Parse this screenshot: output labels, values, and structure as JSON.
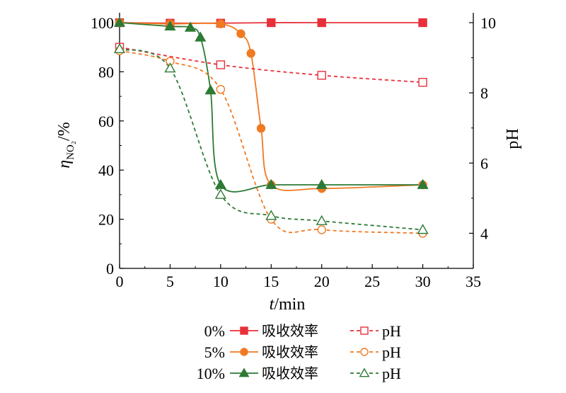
{
  "chart_data": {
    "type": "line",
    "x_label_var": "t",
    "x_label_unit": "/min",
    "y_left_label_var": "η",
    "y_left_label_sub": "NO₂",
    "y_left_label_unit": "/%",
    "y_right_label": "pH",
    "xlim": [
      0,
      35
    ],
    "ylim_left": [
      0,
      100
    ],
    "ylim_right": [
      3,
      10
    ],
    "x_ticks": [
      "0",
      "5",
      "10",
      "15",
      "20",
      "25",
      "30",
      "35"
    ],
    "y_left_ticks": [
      "0",
      "20",
      "40",
      "60",
      "80",
      "100"
    ],
    "y_right_ticks": [
      "4",
      "6",
      "8",
      "10"
    ],
    "grid": false,
    "legend_position": "bottom",
    "legend": {
      "efficiency_label": "吸收效率",
      "ph_label": "pH",
      "rows": [
        {
          "concentration": "0%"
        },
        {
          "concentration": "5%"
        },
        {
          "concentration": "10%"
        }
      ]
    },
    "series": [
      {
        "concentration": "0%",
        "kind": "efficiency",
        "axis": "left",
        "color": "#e8303a",
        "marker": "square-filled",
        "dashed": false,
        "x": [
          0,
          5,
          10,
          15,
          20,
          30
        ],
        "y": [
          100,
          99.8,
          99.8,
          100,
          100,
          100
        ]
      },
      {
        "concentration": "5%",
        "kind": "efficiency",
        "axis": "left",
        "color": "#f07a22",
        "marker": "circle-filled",
        "dashed": false,
        "x": [
          0,
          5,
          10,
          12,
          13,
          14,
          15,
          20,
          30
        ],
        "y": [
          100,
          99.5,
          99.5,
          95.5,
          87.5,
          57,
          34,
          32.5,
          34
        ]
      },
      {
        "concentration": "10%",
        "kind": "efficiency",
        "axis": "left",
        "color": "#2d7a35",
        "marker": "triangle-filled",
        "dashed": false,
        "x": [
          0,
          5,
          7,
          8,
          9,
          10,
          15,
          20,
          30
        ],
        "y": [
          100,
          98.5,
          98,
          94,
          72.5,
          34,
          34,
          34,
          34
        ]
      },
      {
        "concentration": "0%",
        "kind": "pH",
        "axis": "right",
        "color": "#e8303a",
        "marker": "square-open",
        "dashed": true,
        "x": [
          0,
          10,
          20,
          30
        ],
        "y": [
          9.3,
          8.8,
          8.5,
          8.3
        ]
      },
      {
        "concentration": "5%",
        "kind": "pH",
        "axis": "right",
        "color": "#f07a22",
        "marker": "circle-open",
        "dashed": true,
        "x": [
          0,
          5,
          10,
          15,
          20,
          30
        ],
        "y": [
          9.2,
          8.9,
          8.1,
          4.4,
          4.1,
          4.0
        ]
      },
      {
        "concentration": "10%",
        "kind": "pH",
        "axis": "right",
        "color": "#2d7a35",
        "marker": "triangle-open",
        "dashed": true,
        "x": [
          0,
          5,
          10,
          15,
          20,
          30
        ],
        "y": [
          9.25,
          8.7,
          5.1,
          4.5,
          4.35,
          4.1
        ]
      }
    ]
  }
}
